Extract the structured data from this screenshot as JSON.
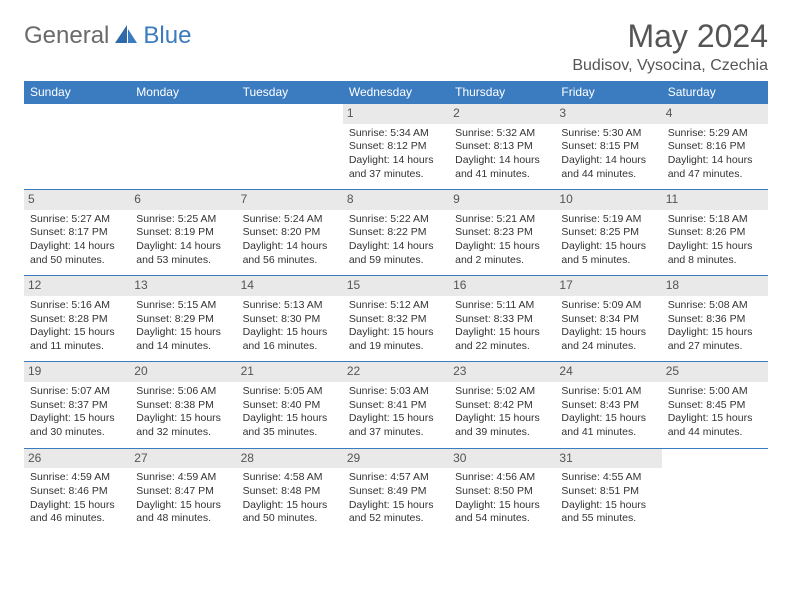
{
  "brand": {
    "general": "General",
    "blue": "Blue"
  },
  "title": "May 2024",
  "location": "Budisov, Vysocina, Czechia",
  "colors": {
    "header_bg": "#3b7bbf",
    "header_text": "#ffffff",
    "daynum_bg": "#e9e9e9",
    "text": "#333333",
    "rule": "#3b7bbf"
  },
  "weekdays": [
    "Sunday",
    "Monday",
    "Tuesday",
    "Wednesday",
    "Thursday",
    "Friday",
    "Saturday"
  ],
  "weeks": [
    [
      null,
      null,
      null,
      {
        "n": "1",
        "sr": "5:34 AM",
        "ss": "8:12 PM",
        "dl": "14 hours and 37 minutes."
      },
      {
        "n": "2",
        "sr": "5:32 AM",
        "ss": "8:13 PM",
        "dl": "14 hours and 41 minutes."
      },
      {
        "n": "3",
        "sr": "5:30 AM",
        "ss": "8:15 PM",
        "dl": "14 hours and 44 minutes."
      },
      {
        "n": "4",
        "sr": "5:29 AM",
        "ss": "8:16 PM",
        "dl": "14 hours and 47 minutes."
      }
    ],
    [
      {
        "n": "5",
        "sr": "5:27 AM",
        "ss": "8:17 PM",
        "dl": "14 hours and 50 minutes."
      },
      {
        "n": "6",
        "sr": "5:25 AM",
        "ss": "8:19 PM",
        "dl": "14 hours and 53 minutes."
      },
      {
        "n": "7",
        "sr": "5:24 AM",
        "ss": "8:20 PM",
        "dl": "14 hours and 56 minutes."
      },
      {
        "n": "8",
        "sr": "5:22 AM",
        "ss": "8:22 PM",
        "dl": "14 hours and 59 minutes."
      },
      {
        "n": "9",
        "sr": "5:21 AM",
        "ss": "8:23 PM",
        "dl": "15 hours and 2 minutes."
      },
      {
        "n": "10",
        "sr": "5:19 AM",
        "ss": "8:25 PM",
        "dl": "15 hours and 5 minutes."
      },
      {
        "n": "11",
        "sr": "5:18 AM",
        "ss": "8:26 PM",
        "dl": "15 hours and 8 minutes."
      }
    ],
    [
      {
        "n": "12",
        "sr": "5:16 AM",
        "ss": "8:28 PM",
        "dl": "15 hours and 11 minutes."
      },
      {
        "n": "13",
        "sr": "5:15 AM",
        "ss": "8:29 PM",
        "dl": "15 hours and 14 minutes."
      },
      {
        "n": "14",
        "sr": "5:13 AM",
        "ss": "8:30 PM",
        "dl": "15 hours and 16 minutes."
      },
      {
        "n": "15",
        "sr": "5:12 AM",
        "ss": "8:32 PM",
        "dl": "15 hours and 19 minutes."
      },
      {
        "n": "16",
        "sr": "5:11 AM",
        "ss": "8:33 PM",
        "dl": "15 hours and 22 minutes."
      },
      {
        "n": "17",
        "sr": "5:09 AM",
        "ss": "8:34 PM",
        "dl": "15 hours and 24 minutes."
      },
      {
        "n": "18",
        "sr": "5:08 AM",
        "ss": "8:36 PM",
        "dl": "15 hours and 27 minutes."
      }
    ],
    [
      {
        "n": "19",
        "sr": "5:07 AM",
        "ss": "8:37 PM",
        "dl": "15 hours and 30 minutes."
      },
      {
        "n": "20",
        "sr": "5:06 AM",
        "ss": "8:38 PM",
        "dl": "15 hours and 32 minutes."
      },
      {
        "n": "21",
        "sr": "5:05 AM",
        "ss": "8:40 PM",
        "dl": "15 hours and 35 minutes."
      },
      {
        "n": "22",
        "sr": "5:03 AM",
        "ss": "8:41 PM",
        "dl": "15 hours and 37 minutes."
      },
      {
        "n": "23",
        "sr": "5:02 AM",
        "ss": "8:42 PM",
        "dl": "15 hours and 39 minutes."
      },
      {
        "n": "24",
        "sr": "5:01 AM",
        "ss": "8:43 PM",
        "dl": "15 hours and 41 minutes."
      },
      {
        "n": "25",
        "sr": "5:00 AM",
        "ss": "8:45 PM",
        "dl": "15 hours and 44 minutes."
      }
    ],
    [
      {
        "n": "26",
        "sr": "4:59 AM",
        "ss": "8:46 PM",
        "dl": "15 hours and 46 minutes."
      },
      {
        "n": "27",
        "sr": "4:59 AM",
        "ss": "8:47 PM",
        "dl": "15 hours and 48 minutes."
      },
      {
        "n": "28",
        "sr": "4:58 AM",
        "ss": "8:48 PM",
        "dl": "15 hours and 50 minutes."
      },
      {
        "n": "29",
        "sr": "4:57 AM",
        "ss": "8:49 PM",
        "dl": "15 hours and 52 minutes."
      },
      {
        "n": "30",
        "sr": "4:56 AM",
        "ss": "8:50 PM",
        "dl": "15 hours and 54 minutes."
      },
      {
        "n": "31",
        "sr": "4:55 AM",
        "ss": "8:51 PM",
        "dl": "15 hours and 55 minutes."
      },
      null
    ]
  ],
  "labels": {
    "sunrise": "Sunrise:",
    "sunset": "Sunset:",
    "daylight": "Daylight:"
  }
}
